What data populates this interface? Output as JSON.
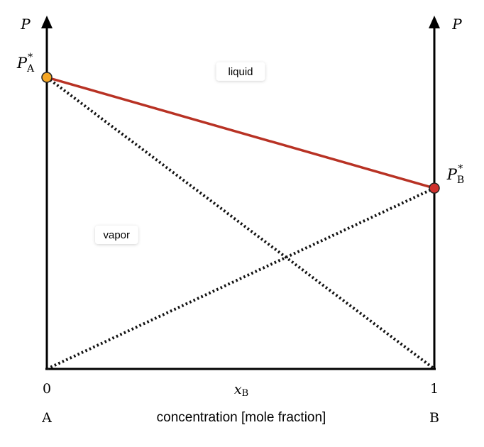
{
  "chart_data": {
    "type": "line",
    "title": "",
    "xlabel": "concentration [mole fraction]",
    "x_symbol": "x",
    "x_symbol_sub": "B",
    "ylabel_left": "P",
    "ylabel_right": "P",
    "xlim": [
      0,
      1
    ],
    "ylim": [
      0,
      1
    ],
    "x_ticks": [
      {
        "value": 0,
        "label": "0",
        "component": "A"
      },
      {
        "value": 1,
        "label": "1",
        "component": "B"
      }
    ],
    "points": [
      {
        "main": "P",
        "sub": "A",
        "sup": "*",
        "x": 0,
        "y": 1.0,
        "color": "#f5a623"
      },
      {
        "main": "P",
        "sub": "B",
        "sup": "*",
        "x": 1,
        "y": 0.62,
        "color": "#d0312d"
      }
    ],
    "series": [
      {
        "kind": "total",
        "style": "solid",
        "color": "#b83224",
        "x": [
          0,
          1
        ],
        "y": [
          1.0,
          0.62
        ]
      },
      {
        "kind": "partial-A",
        "style": "dotted",
        "color": "#111111",
        "x": [
          0,
          1
        ],
        "y": [
          1.0,
          0.0
        ]
      },
      {
        "kind": "partial-B",
        "style": "dotted",
        "color": "#111111",
        "x": [
          0,
          1
        ],
        "y": [
          0.0,
          0.62
        ]
      }
    ],
    "region_labels": [
      {
        "text": "liquid",
        "x": 0.5,
        "y": 1.02
      },
      {
        "text": "vapor",
        "x": 0.18,
        "y": 0.46
      }
    ],
    "grid": false,
    "legend": "none"
  }
}
